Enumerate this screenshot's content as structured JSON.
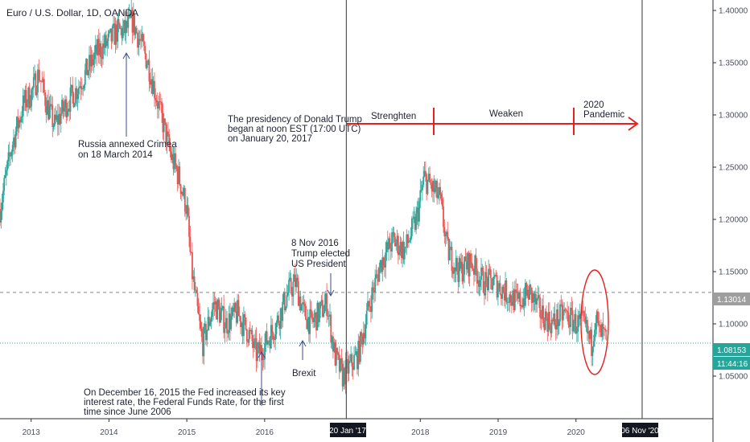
{
  "chart_data": {
    "type": "line",
    "title": "Euro / U.S. Dollar, 1D, OANDA",
    "ylim": [
      1.01,
      1.41
    ],
    "xlim": [
      2012.6,
      2021.75
    ],
    "y_ticks": [
      "1.40000",
      "1.35000",
      "1.30000",
      "1.25000",
      "1.20000",
      "1.15000",
      "1.10000",
      "1.05000"
    ],
    "y_tick_values": [
      1.4,
      1.35,
      1.3,
      1.25,
      1.2,
      1.15,
      1.1,
      1.05
    ],
    "x_ticks": [
      {
        "label": "2013",
        "x": 2013.0
      },
      {
        "label": "2014",
        "x": 2014.0
      },
      {
        "label": "2015",
        "x": 2015.0
      },
      {
        "label": "2016",
        "x": 2016.0
      },
      {
        "label": "2018",
        "x": 2018.0
      },
      {
        "label": "2019",
        "x": 2019.0
      },
      {
        "label": "2020",
        "x": 2020.0
      }
    ],
    "grid": false,
    "colors": {
      "up": "#26a69a",
      "down": "#ef5350",
      "annotation_red": "#e8201f",
      "vline": "#555555",
      "hline_dash": "#888888",
      "hline_teal": "#26a69a"
    },
    "series": [
      {
        "values_x": [
          2012.6,
          2012.75,
          2012.9,
          2013.0,
          2013.1,
          2013.2,
          2013.3,
          2013.45,
          2013.55,
          2013.7,
          2013.85,
          2014.0,
          2014.1,
          2014.2,
          2014.3,
          2014.4,
          2014.5,
          2014.6,
          2014.7,
          2014.8,
          2014.9,
          2015.0,
          2015.05,
          2015.1,
          2015.2,
          2015.35,
          2015.5,
          2015.65,
          2015.8,
          2015.9,
          2016.0,
          2016.15,
          2016.3,
          2016.4,
          2016.5,
          2016.6,
          2016.7,
          2016.8,
          2016.9,
          2017.0,
          2017.1,
          2017.2,
          2017.35,
          2017.5,
          2017.65,
          2017.8,
          2017.95,
          2018.05,
          2018.15,
          2018.25,
          2018.35,
          2018.5,
          2018.65,
          2018.8,
          2018.95,
          2019.1,
          2019.25,
          2019.4,
          2019.55,
          2019.7,
          2019.85,
          2020.0,
          2020.1,
          2020.2,
          2020.25,
          2020.3,
          2020.35,
          2020.4
        ],
        "values_y": [
          1.21,
          1.27,
          1.31,
          1.32,
          1.34,
          1.31,
          1.29,
          1.31,
          1.32,
          1.34,
          1.36,
          1.37,
          1.38,
          1.38,
          1.39,
          1.37,
          1.35,
          1.32,
          1.29,
          1.26,
          1.24,
          1.21,
          1.16,
          1.13,
          1.08,
          1.12,
          1.1,
          1.11,
          1.09,
          1.07,
          1.08,
          1.1,
          1.13,
          1.14,
          1.11,
          1.1,
          1.11,
          1.12,
          1.07,
          1.05,
          1.06,
          1.07,
          1.12,
          1.16,
          1.18,
          1.17,
          1.2,
          1.24,
          1.23,
          1.22,
          1.17,
          1.15,
          1.16,
          1.14,
          1.14,
          1.13,
          1.12,
          1.13,
          1.11,
          1.1,
          1.11,
          1.1,
          1.1,
          1.08,
          1.11,
          1.09,
          1.09,
          1.08
        ]
      }
    ],
    "hlines": [
      {
        "value": 1.13014,
        "label": "1.13014",
        "style": "dashed"
      },
      {
        "value": 1.08153,
        "label": "1.08153",
        "style": "dotted",
        "countdown": "11:44:16"
      }
    ],
    "vlines": [
      {
        "x": 2017.05,
        "label": "20 Jan '17"
      },
      {
        "x": 2020.85,
        "label": "06 Nov '20"
      }
    ],
    "annotations": {
      "crimea": [
        "Russia annexed Crimea",
        "on 18 March 2014"
      ],
      "fed": [
        "On December 16, 2015 the Fed increased its key",
        "interest rate, the Federal Funds Rate, for the first",
        "time since June 2006"
      ],
      "trump_elected": [
        "8 Nov 2016",
        "Trump elected",
        "US President"
      ],
      "brexit": [
        "Brexit"
      ],
      "presidency": [
        "The presidency of Donald Trump",
        "began at noon EST (17:00 UTC)",
        "on January 20, 2017"
      ],
      "strengthen": "Strenghten",
      "weaken": "Weaken",
      "pandemic": [
        "2020",
        "Pandemic"
      ]
    }
  }
}
